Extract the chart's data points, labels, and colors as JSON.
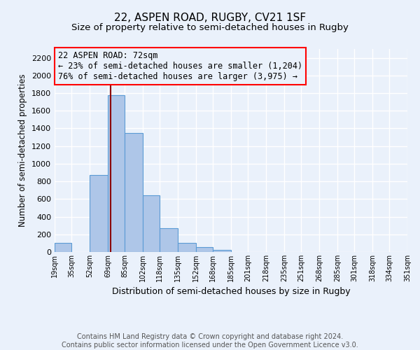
{
  "title": "22, ASPEN ROAD, RUGBY, CV21 1SF",
  "subtitle": "Size of property relative to semi-detached houses in Rugby",
  "xlabel": "Distribution of semi-detached houses by size in Rugby",
  "ylabel": "Number of semi-detached properties",
  "footnote": "Contains HM Land Registry data © Crown copyright and database right 2024.\nContains public sector information licensed under the Open Government Licence v3.0.",
  "annotation_title": "22 ASPEN ROAD: 72sqm",
  "annotation_line1": "← 23% of semi-detached houses are smaller (1,204)",
  "annotation_line2": "76% of semi-detached houses are larger (3,975) →",
  "bin_labels": [
    "19sqm",
    "35sqm",
    "52sqm",
    "69sqm",
    "85sqm",
    "102sqm",
    "118sqm",
    "135sqm",
    "152sqm",
    "168sqm",
    "185sqm",
    "201sqm",
    "218sqm",
    "235sqm",
    "251sqm",
    "268sqm",
    "285sqm",
    "301sqm",
    "318sqm",
    "334sqm",
    "351sqm"
  ],
  "bin_edges": [
    19,
    35,
    52,
    69,
    85,
    102,
    118,
    135,
    152,
    168,
    185,
    201,
    218,
    235,
    251,
    268,
    285,
    301,
    318,
    334,
    351
  ],
  "bar_heights": [
    100,
    0,
    870,
    1780,
    1350,
    640,
    270,
    100,
    55,
    25,
    0,
    0,
    0,
    0,
    0,
    0,
    0,
    0,
    0,
    0
  ],
  "bar_color": "#aec6e8",
  "bar_edge_color": "#5b9bd5",
  "vline_x": 72,
  "vline_color": "#8b0000",
  "ylim": [
    0,
    2300
  ],
  "yticks": [
    0,
    200,
    400,
    600,
    800,
    1000,
    1200,
    1400,
    1600,
    1800,
    2000,
    2200
  ],
  "background_color": "#eaf1fb",
  "grid_color": "#ffffff",
  "title_fontsize": 11,
  "subtitle_fontsize": 9.5,
  "annotation_fontsize": 8.5,
  "footnote_fontsize": 7
}
